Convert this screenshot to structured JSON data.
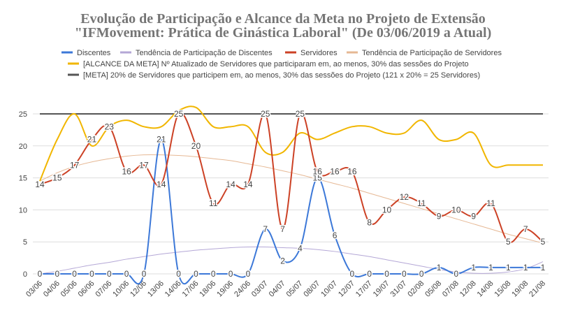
{
  "chart_data": {
    "type": "line",
    "title": [
      "Evolução de Participação e Alcance da Meta no Projeto de Extensão",
      "\"IFMovement: Prática de Ginástica Laboral\" (De 03/06/2019 a Atual)"
    ],
    "categories": [
      "03/06",
      "04/06",
      "05/06",
      "06/06",
      "07/06",
      "10/06",
      "12/06",
      "13/06",
      "14/06",
      "17/06",
      "18/06",
      "19/06",
      "24/06",
      "03/07",
      "04/07",
      "05/07",
      "08/07",
      "10/07",
      "12/07",
      "17/07",
      "19/07",
      "31/07",
      "02/08",
      "05/08",
      "07/08",
      "12/08",
      "14/08",
      "15/08",
      "19/08",
      "21/08"
    ],
    "ylim": [
      -1.5,
      27.5
    ],
    "yticks": [
      0,
      5,
      10,
      15,
      20,
      25
    ],
    "grid": true,
    "series": [
      {
        "name": "Discentes",
        "color": "#3c78d8",
        "labels": true,
        "values": [
          0,
          0,
          0,
          0,
          0,
          0,
          0,
          21,
          0,
          0,
          0,
          0,
          0,
          7,
          2,
          4,
          15,
          6,
          0,
          0,
          0,
          0,
          0,
          1,
          0,
          1,
          1,
          1,
          1,
          1
        ]
      },
      {
        "name": "Tendência de Participação de Discentes",
        "color": "#b4a7d6",
        "thin": true,
        "values": [
          0,
          0.4,
          0.9,
          1.4,
          1.8,
          2.3,
          2.7,
          3.1,
          3.4,
          3.7,
          3.9,
          4.1,
          4.2,
          4.2,
          4.1,
          4.0,
          3.8,
          3.5,
          3.1,
          2.7,
          2.2,
          1.7,
          1.2,
          0.7,
          0.3,
          0.1,
          0.1,
          0.3,
          0.8,
          1.9
        ]
      },
      {
        "name": "Servidores",
        "color": "#cc4125",
        "labels": true,
        "values": [
          14,
          15,
          17,
          21,
          23,
          16,
          17,
          14,
          25,
          20,
          11,
          14,
          14,
          25,
          7,
          25,
          16,
          16,
          16,
          8,
          10,
          12,
          11,
          9,
          10,
          9,
          11,
          5,
          7,
          5
        ]
      },
      {
        "name": "Tendência de Participação de Servidores",
        "color": "#e6b894",
        "thin": true,
        "values": [
          14.5,
          15.8,
          16.8,
          17.5,
          18.0,
          18.4,
          18.6,
          18.6,
          18.5,
          18.3,
          18.0,
          17.7,
          17.2,
          16.7,
          16.1,
          15.5,
          14.8,
          14.1,
          13.4,
          12.6,
          11.8,
          11.0,
          10.2,
          9.4,
          8.6,
          7.8,
          7.0,
          6.2,
          5.5,
          4.8
        ]
      },
      {
        "name": "[ALCANCE DA META] Nº Atualizado de Servidores que participaram em, ao menos, 30% das sessões do Projeto",
        "color": "#f1b600",
        "values": [
          14.5,
          21,
          25,
          20,
          23,
          24,
          23,
          23,
          25.5,
          26,
          23,
          23,
          23,
          19,
          19,
          22,
          21,
          22,
          23,
          23,
          22,
          22,
          24,
          21,
          21,
          22,
          17,
          17,
          17,
          17
        ]
      },
      {
        "name": "[META] 20% de Servidores que participem em, ao menos, 30% das sessões do Projeto (121 x 20% = 25 Servidores)",
        "color": "#555555",
        "values": [
          25,
          25,
          25,
          25,
          25,
          25,
          25,
          25,
          25,
          25,
          25,
          25,
          25,
          25,
          25,
          25,
          25,
          25,
          25,
          25,
          25,
          25,
          25,
          25,
          25,
          25,
          25,
          25,
          25,
          25
        ]
      }
    ]
  }
}
